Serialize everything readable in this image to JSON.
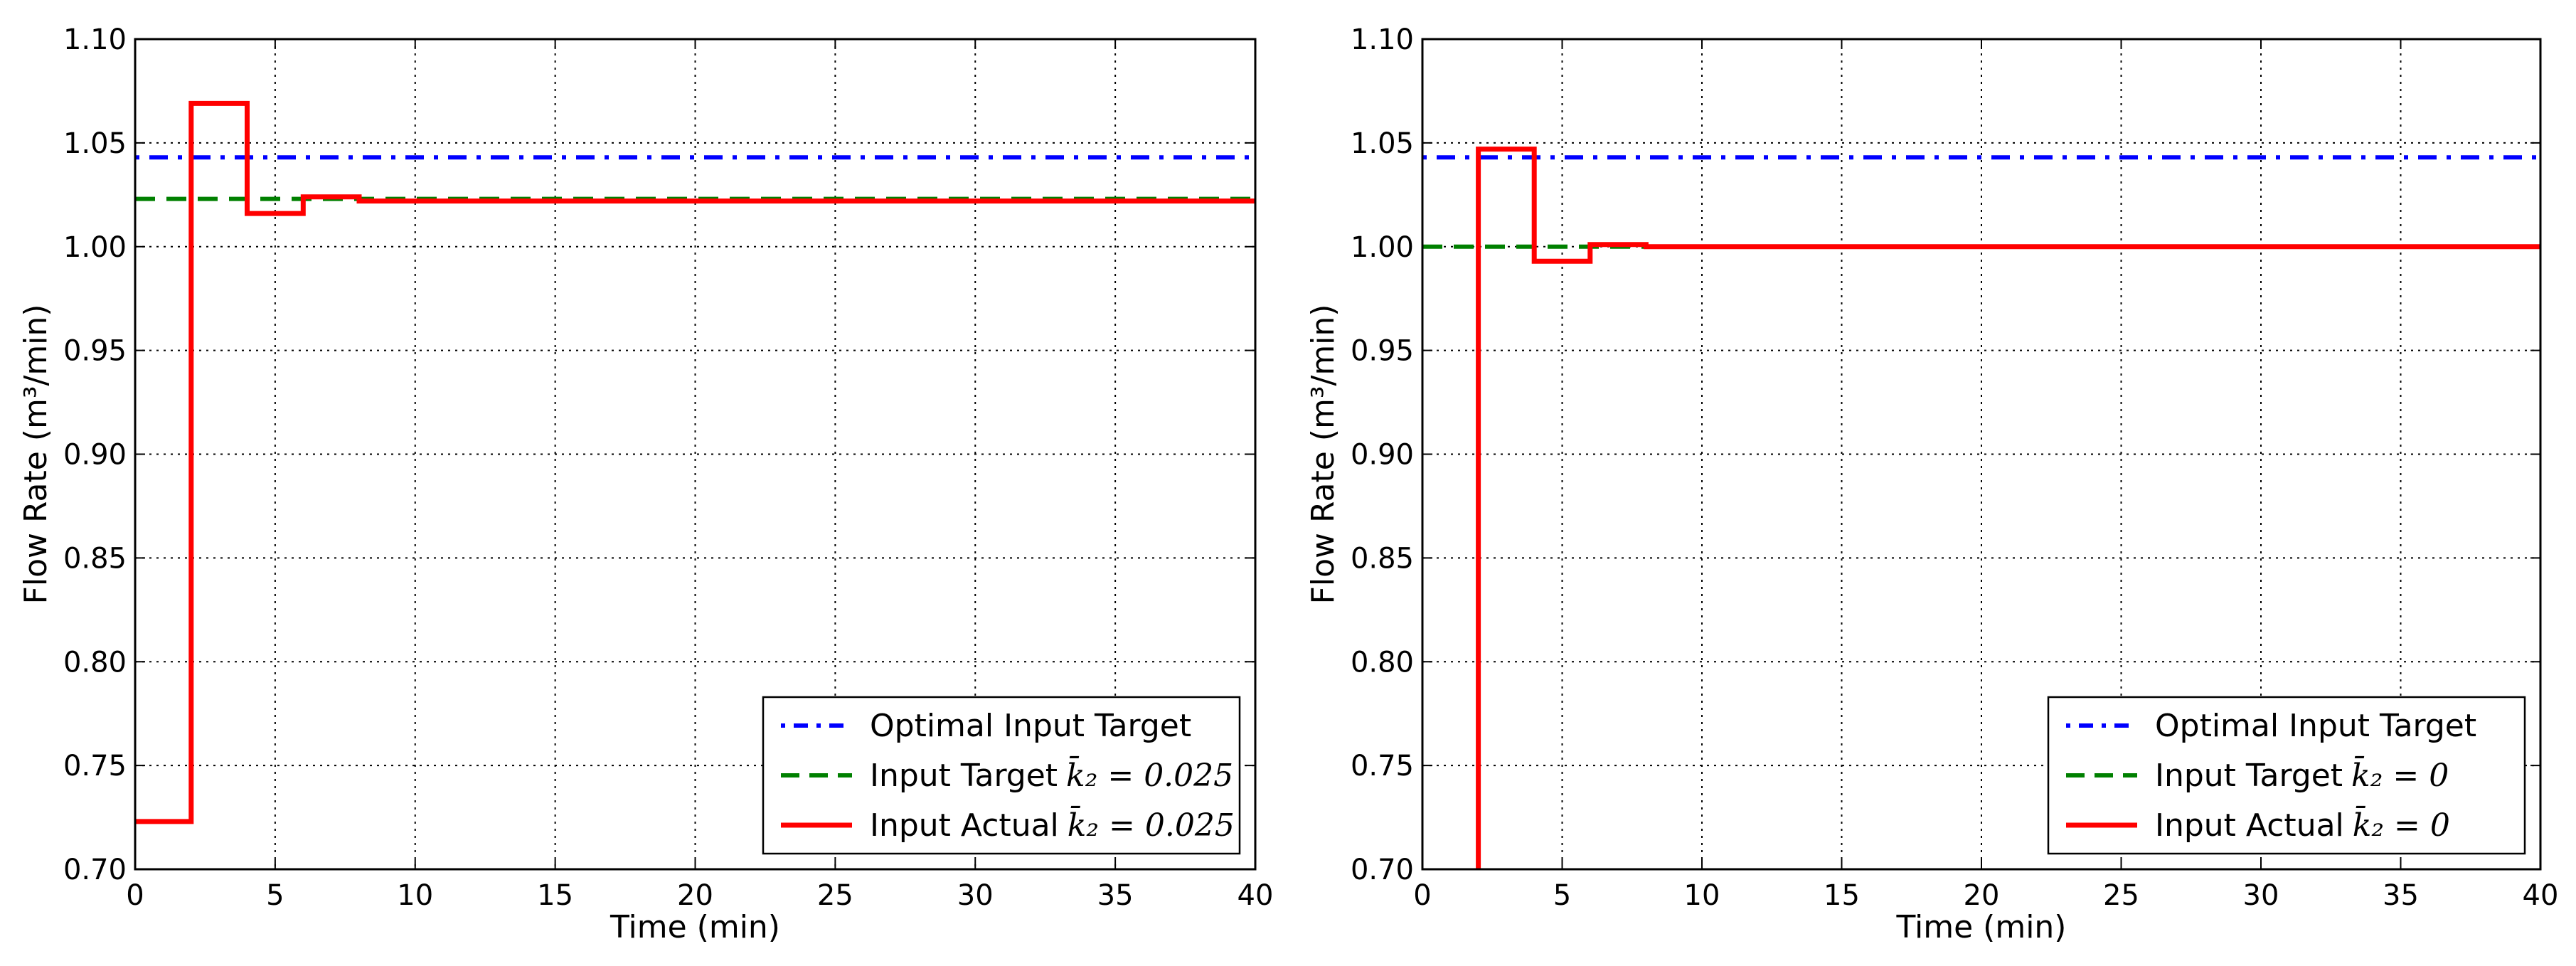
{
  "chart_data": [
    {
      "type": "line",
      "xlabel": "Time (min)",
      "ylabel": "Flow Rate  (m³/min)",
      "xlim": [
        0,
        40
      ],
      "ylim": [
        0.7,
        1.1
      ],
      "xticks": [
        "0",
        "5",
        "10",
        "15",
        "20",
        "25",
        "30",
        "35",
        "40"
      ],
      "yticks": [
        "0.70",
        "0.75",
        "0.80",
        "0.85",
        "0.90",
        "0.95",
        "1.00",
        "1.05",
        "1.10"
      ],
      "grid": true,
      "legend_position": "lower-right",
      "series": [
        {
          "name": "Optimal Input Target",
          "color": "#0000ff",
          "style": "dash-dot",
          "x": [
            0,
            40
          ],
          "y": [
            1.043,
            1.043
          ]
        },
        {
          "name": "Input Target",
          "name_math": "k̄₂ = 0.025",
          "color": "#008000",
          "style": "dashed",
          "x": [
            0,
            40
          ],
          "y": [
            1.023,
            1.023
          ]
        },
        {
          "name": "Input Actual",
          "name_math": "k̄₂ = 0.025",
          "color": "#ff0000",
          "style": "solid-step",
          "x": [
            0,
            2,
            2,
            4,
            4,
            6,
            6,
            8,
            8,
            40
          ],
          "y": [
            0.723,
            0.723,
            1.069,
            1.069,
            1.016,
            1.016,
            1.024,
            1.024,
            1.022,
            1.022
          ]
        }
      ]
    },
    {
      "type": "line",
      "xlabel": "Time (min)",
      "ylabel": "Flow Rate  (m³/min)",
      "xlim": [
        0,
        40
      ],
      "ylim": [
        0.7,
        1.1
      ],
      "xticks": [
        "0",
        "5",
        "10",
        "15",
        "20",
        "25",
        "30",
        "35",
        "40"
      ],
      "yticks": [
        "0.70",
        "0.75",
        "0.80",
        "0.85",
        "0.90",
        "0.95",
        "1.00",
        "1.05",
        "1.10"
      ],
      "grid": true,
      "legend_position": "lower-right",
      "series": [
        {
          "name": "Optimal Input Target",
          "color": "#0000ff",
          "style": "dash-dot",
          "x": [
            0,
            40
          ],
          "y": [
            1.043,
            1.043
          ]
        },
        {
          "name": "Input Target",
          "name_math": "k̄₂ = 0",
          "color": "#008000",
          "style": "dashed",
          "x": [
            0,
            40
          ],
          "y": [
            1.0,
            1.0
          ]
        },
        {
          "name": "Input Actual",
          "name_math": "k̄₂ = 0",
          "color": "#ff0000",
          "style": "solid-step",
          "x": [
            2,
            2,
            4,
            4,
            6,
            6,
            8,
            8,
            40
          ],
          "y": [
            0.7,
            1.047,
            1.047,
            0.993,
            0.993,
            1.001,
            1.001,
            1.0,
            1.0
          ]
        }
      ]
    }
  ]
}
